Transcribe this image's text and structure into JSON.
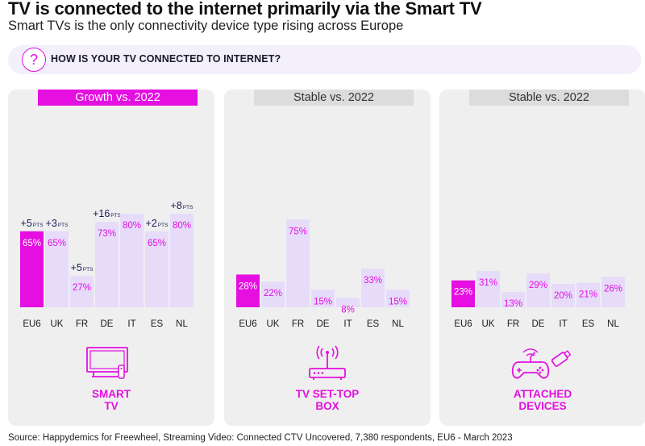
{
  "title": "TV is connected to the internet primarily via the Smart TV",
  "subtitle": "Smart TVs is the only connectivity device type rising across Europe",
  "question": {
    "icon": "question-icon",
    "glyph": "?",
    "text": "HOW IS YOUR TV CONNECTED TO INTERNET?"
  },
  "colors": {
    "accent": "#e40fe0",
    "bar": "#e6dcfa",
    "panel": "#efefef",
    "header_neutral": "#dcdcdc"
  },
  "chart_data": [
    {
      "type": "bar",
      "title": "SMART TV",
      "title_lines": [
        "SMART",
        "TV"
      ],
      "header": "Growth vs. 2022",
      "icon": "smart-tv-icon",
      "categories": [
        "EU6",
        "UK",
        "FR",
        "DE",
        "IT",
        "ES",
        "NL"
      ],
      "values": [
        65,
        65,
        27,
        73,
        80,
        65,
        80
      ],
      "labels": [
        "65%",
        "65%",
        "27%",
        "73%",
        "80%",
        "65%",
        "80%"
      ],
      "growth": [
        "+5",
        "+3",
        "+5",
        "+16",
        "",
        "+2",
        "+8"
      ],
      "growth_unit": "PTS",
      "ylim": [
        0,
        100
      ]
    },
    {
      "type": "bar",
      "title": "TV SET-TOP BOX",
      "title_lines": [
        "TV SET-TOP",
        "BOX"
      ],
      "header": "Stable vs. 2022",
      "icon": "set-top-box-icon",
      "categories": [
        "EU6",
        "UK",
        "FR",
        "DE",
        "IT",
        "ES",
        "NL"
      ],
      "values": [
        28,
        22,
        75,
        15,
        8,
        33,
        15
      ],
      "labels": [
        "28%",
        "22%",
        "75%",
        "15%",
        "8%",
        "33%",
        "15%"
      ],
      "ylim": [
        0,
        100
      ]
    },
    {
      "type": "bar",
      "title": "ATTACHED DEVICES",
      "title_lines": [
        "ATTACHED",
        "DEVICES"
      ],
      "header": "Stable vs. 2022",
      "icon": "gamepad-usb-icon",
      "categories": [
        "EU6",
        "UK",
        "FR",
        "DE",
        "IT",
        "ES",
        "NL"
      ],
      "values": [
        23,
        31,
        13,
        29,
        20,
        21,
        26
      ],
      "labels": [
        "23%",
        "31%",
        "13%",
        "29%",
        "20%",
        "21%",
        "26%"
      ],
      "ylim": [
        0,
        100
      ]
    }
  ],
  "source": "Source: Happydemics for Freewheel, Streaming Video: Connected CTV Uncovered, 7,380 respondents, EU6 - March 2023"
}
